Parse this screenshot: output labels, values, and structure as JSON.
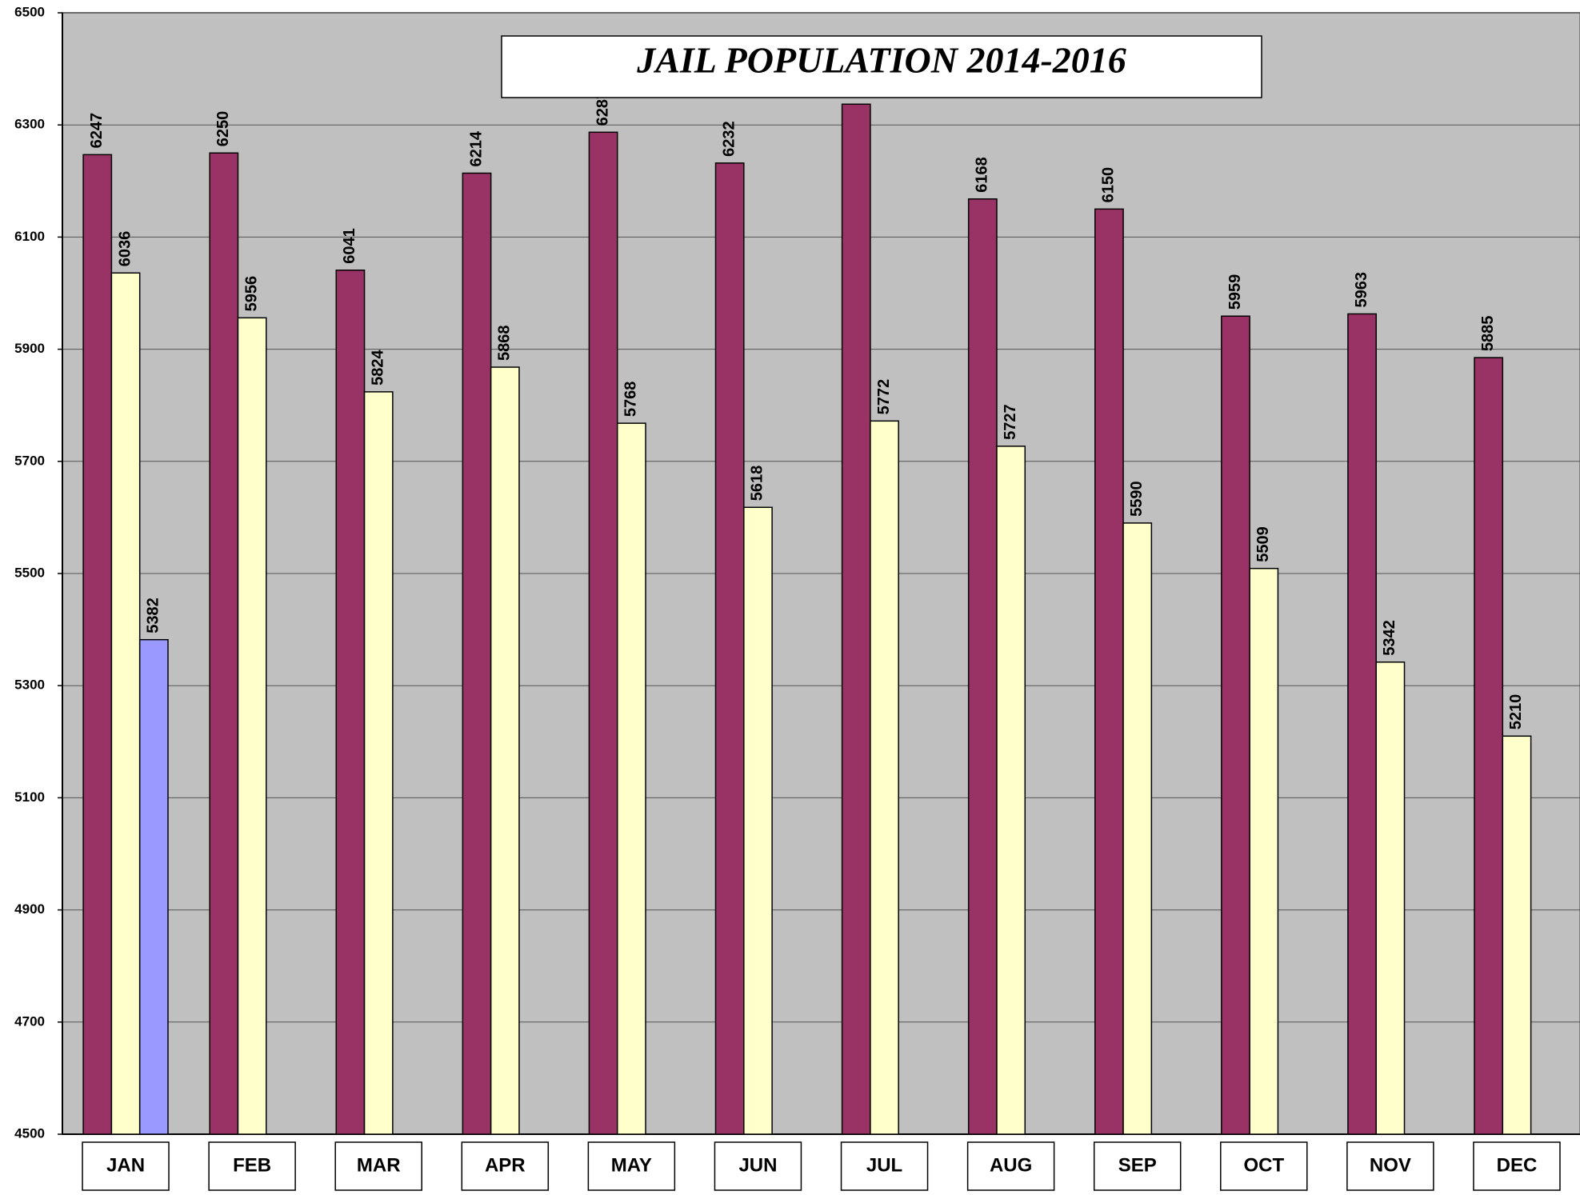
{
  "chart_data": {
    "type": "bar",
    "title": "JAIL POPULATION 2014-2016",
    "categories": [
      "JAN",
      "FEB",
      "MAR",
      "APR",
      "MAY",
      "JUN",
      "JUL",
      "AUG",
      "SEP",
      "OCT",
      "NOV",
      "DEC"
    ],
    "series": [
      {
        "color": "#993366",
        "values": [
          6247,
          6250,
          6041,
          6214,
          6287,
          6232,
          6337,
          6168,
          6150,
          5959,
          5963,
          5885
        ]
      },
      {
        "color": "#ffffcc",
        "values": [
          6036,
          5956,
          5824,
          5868,
          5768,
          5618,
          5772,
          5727,
          5590,
          5509,
          5342,
          5210
        ]
      },
      {
        "color": "#9999ff",
        "values": [
          5382,
          null,
          null,
          null,
          null,
          null,
          null,
          null,
          null,
          null,
          null,
          null
        ]
      }
    ],
    "ylim": [
      4500,
      6500
    ],
    "yticks": [
      4500,
      4700,
      4900,
      5100,
      5300,
      5500,
      5700,
      5900,
      6100,
      6300,
      6500
    ],
    "grid": true
  }
}
